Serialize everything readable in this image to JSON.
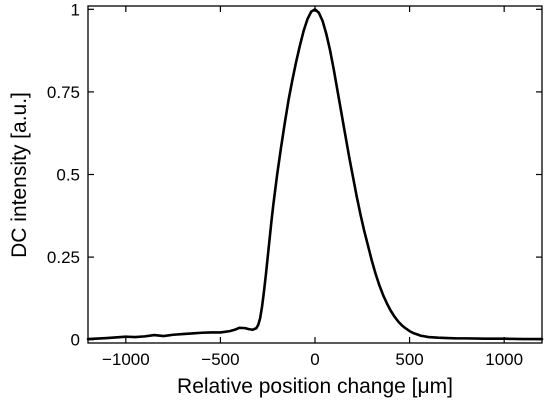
{
  "chart_data": {
    "type": "line",
    "xlabel": "Relative position change [μm]",
    "ylabel": "DC intensity [a.u.]",
    "xlim": [
      -1200,
      1200
    ],
    "ylim": [
      -0.01,
      1.01
    ],
    "xticks": [
      -1000,
      -500,
      0,
      500,
      1000
    ],
    "xtick_labels": [
      "−1000",
      "−500",
      "0",
      "500",
      "1000"
    ],
    "yticks": [
      0,
      0.25,
      0.5,
      0.75,
      1
    ],
    "ytick_labels": [
      "0",
      "0.25",
      "0.5",
      "0.75",
      "1"
    ],
    "grid": false,
    "legend": "none",
    "line_color": "#000000",
    "series": [
      {
        "x": [
          -1200,
          -1100,
          -1000,
          -950,
          -900,
          -850,
          -800,
          -750,
          -700,
          -650,
          -600,
          -550,
          -500,
          -450,
          -420,
          -400,
          -370,
          -350,
          -330,
          -310,
          -300,
          -290,
          -280,
          -270,
          -260,
          -250,
          -240,
          -230,
          -220,
          -200,
          -180,
          -160,
          -140,
          -120,
          -100,
          -80,
          -60,
          -40,
          -20,
          0,
          20,
          40,
          60,
          80,
          100,
          120,
          140,
          160,
          180,
          200,
          220,
          240,
          260,
          280,
          300,
          320,
          340,
          360,
          380,
          400,
          420,
          440,
          460,
          480,
          500,
          520,
          540,
          560,
          580,
          600,
          650,
          700,
          750,
          800,
          900,
          1000,
          1100,
          1200
        ],
        "y": [
          0.002,
          0.005,
          0.009,
          0.008,
          0.01,
          0.014,
          0.011,
          0.015,
          0.017,
          0.019,
          0.021,
          0.022,
          0.022,
          0.026,
          0.031,
          0.036,
          0.035,
          0.032,
          0.03,
          0.035,
          0.045,
          0.065,
          0.1,
          0.145,
          0.195,
          0.25,
          0.305,
          0.36,
          0.41,
          0.5,
          0.58,
          0.655,
          0.725,
          0.785,
          0.84,
          0.89,
          0.935,
          0.97,
          0.993,
          1.0,
          0.99,
          0.965,
          0.925,
          0.875,
          0.815,
          0.75,
          0.685,
          0.62,
          0.555,
          0.495,
          0.435,
          0.38,
          0.33,
          0.285,
          0.24,
          0.2,
          0.165,
          0.135,
          0.11,
          0.088,
          0.07,
          0.055,
          0.043,
          0.034,
          0.026,
          0.02,
          0.016,
          0.012,
          0.01,
          0.008,
          0.006,
          0.005,
          0.004,
          0.004,
          0.003,
          0.003,
          0.002,
          0.002
        ]
      }
    ]
  }
}
